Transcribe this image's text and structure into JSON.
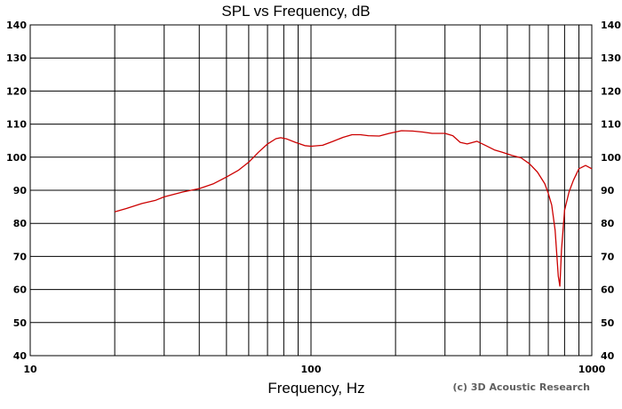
{
  "chart_data": {
    "type": "line",
    "title": "SPL vs Frequency, dB",
    "xlabel": "Frequency, Hz",
    "ylabel": "",
    "x_scale": "log",
    "xlim": [
      10,
      1000
    ],
    "ylim": [
      40,
      140
    ],
    "grid": true,
    "x_tick_labels": [
      {
        "value": 10,
        "label": "10"
      },
      {
        "value": 100,
        "label": "100"
      },
      {
        "value": 1000,
        "label": "1000"
      }
    ],
    "y_ticks": [
      40,
      50,
      60,
      70,
      80,
      90,
      100,
      110,
      120,
      130,
      140
    ],
    "line_color": "#cc0000",
    "series": [
      {
        "x": [
          20,
          22,
          25,
          28,
          30,
          35,
          40,
          45,
          50,
          55,
          60,
          65,
          70,
          75,
          78,
          82,
          88,
          95,
          100,
          110,
          120,
          130,
          140,
          150,
          160,
          175,
          190,
          210,
          230,
          250,
          270,
          300,
          320,
          340,
          360,
          390,
          420,
          450,
          480,
          520,
          560,
          600,
          640,
          680,
          700,
          720,
          740,
          760,
          770,
          780,
          800,
          830,
          860,
          900,
          950,
          1000
        ],
        "y": [
          83.5,
          84.5,
          86,
          87,
          88,
          89.5,
          90.5,
          92,
          94,
          96,
          98.5,
          101.5,
          104,
          105.6,
          105.9,
          105.5,
          104.5,
          103.5,
          103.3,
          103.6,
          104.8,
          106,
          106.8,
          106.8,
          106.5,
          106.4,
          107.2,
          108,
          107.9,
          107.6,
          107.2,
          107.2,
          106.5,
          104.5,
          104,
          104.8,
          103.5,
          102.2,
          101.5,
          100.5,
          99.8,
          98,
          95.5,
          92,
          89,
          85.5,
          78,
          64,
          61,
          72,
          84,
          89.5,
          93,
          96.5,
          97.5,
          96.5
        ]
      }
    ],
    "annotations": [
      "(c) 3D Acoustic Research"
    ]
  }
}
